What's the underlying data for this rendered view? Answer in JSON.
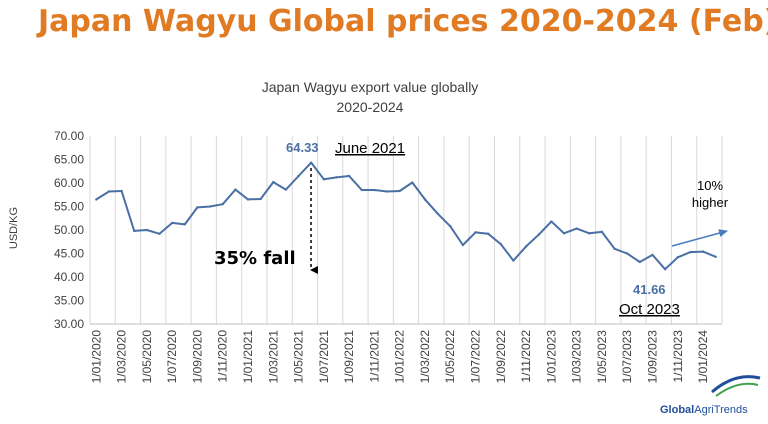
{
  "page": {
    "headline": "Japan Wagyu Global prices 2020-2024 (Feb)",
    "brand_part1": "Global",
    "brand_part2": "AgriTrends",
    "colors": {
      "headline": "#e07b23",
      "line": "#4a6fa5",
      "brand": "#1f4e9a"
    }
  },
  "chart_data": {
    "type": "line",
    "title": "Japan Wagyu export value globally",
    "subtitle": "2020-2024",
    "ylabel": "USD/KG",
    "xlabel": "",
    "ylim": [
      30,
      70
    ],
    "ytick_labels": [
      "30.00",
      "35.00",
      "40.00",
      "45.00",
      "50.00",
      "55.00",
      "60.00",
      "65.00",
      "70.00"
    ],
    "ytick_values": [
      30,
      35,
      40,
      45,
      50,
      55,
      60,
      65,
      70
    ],
    "grid": "vertical",
    "x": [
      "1/01/2020",
      "1/02/2020",
      "1/03/2020",
      "1/04/2020",
      "1/05/2020",
      "1/06/2020",
      "1/07/2020",
      "1/08/2020",
      "1/09/2020",
      "1/10/2020",
      "1/11/2020",
      "1/12/2020",
      "1/01/2021",
      "1/02/2021",
      "1/03/2021",
      "1/04/2021",
      "1/05/2021",
      "1/06/2021",
      "1/07/2021",
      "1/08/2021",
      "1/09/2021",
      "1/10/2021",
      "1/11/2021",
      "1/12/2021",
      "1/01/2022",
      "1/02/2022",
      "1/03/2022",
      "1/04/2022",
      "1/05/2022",
      "1/06/2022",
      "1/07/2022",
      "1/08/2022",
      "1/09/2022",
      "1/10/2022",
      "1/11/2022",
      "1/12/2022",
      "1/01/2023",
      "1/02/2023",
      "1/03/2023",
      "1/04/2023",
      "1/05/2023",
      "1/06/2023",
      "1/07/2023",
      "1/08/2023",
      "1/09/2023",
      "1/10/2023",
      "1/11/2023",
      "1/12/2023",
      "1/01/2024",
      "1/02/2024"
    ],
    "xtick_labels": [
      "1/01/2020",
      "1/03/2020",
      "1/05/2020",
      "1/07/2020",
      "1/09/2020",
      "1/11/2020",
      "1/01/2021",
      "1/03/2021",
      "1/05/2021",
      "1/07/2021",
      "1/09/2021",
      "1/11/2021",
      "1/01/2022",
      "1/03/2022",
      "1/05/2022",
      "1/07/2022",
      "1/09/2022",
      "1/11/2022",
      "1/01/2023",
      "1/03/2023",
      "1/05/2023",
      "1/07/2023",
      "1/09/2023",
      "1/11/2023",
      "1/01/2024"
    ],
    "series": [
      {
        "values": [
          56.5,
          58.2,
          58.3,
          49.8,
          50.0,
          49.2,
          51.5,
          51.2,
          54.8,
          55.0,
          55.5,
          58.6,
          56.5,
          56.6,
          60.2,
          58.6,
          61.5,
          64.33,
          60.8,
          61.2,
          61.5,
          58.5,
          58.5,
          58.2,
          58.3,
          60.1,
          56.5,
          53.5,
          50.8,
          46.8,
          49.5,
          49.2,
          47.0,
          43.5,
          46.5,
          49.0,
          51.8,
          49.3,
          50.3,
          49.3,
          49.6,
          46.0,
          45.0,
          43.2,
          44.7,
          41.66,
          44.2,
          45.3,
          45.4,
          44.3
        ]
      }
    ],
    "annotations": {
      "peak_value": "64.33",
      "peak_label": "June 2021",
      "fall_label": "35% fall",
      "low_value": "41.66",
      "low_label": "Oct 2023",
      "rise_line1": "10%",
      "rise_line2": "higher"
    }
  }
}
